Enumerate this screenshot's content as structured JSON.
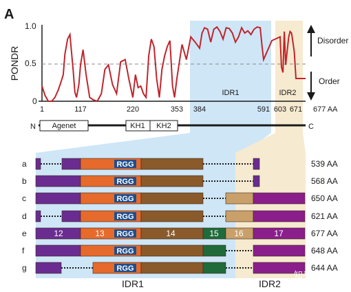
{
  "panel_label": "A",
  "y_axis": {
    "label": "PONDR",
    "ticks": [
      "1.0",
      "0.5",
      "0"
    ]
  },
  "arrows": {
    "disorder_label": "Disorder",
    "order_label": "Order"
  },
  "regions": {
    "idr1_label": "IDR1",
    "idr2_label": "IDR2"
  },
  "x_ticks": [
    "1",
    "117",
    "220",
    "353",
    "384",
    "591",
    "603",
    "671",
    "677 AA"
  ],
  "domain_map": {
    "n_label": "N",
    "c_label": "C",
    "agenet_label": "Agenet",
    "kh1_label": "KH1",
    "kh2_label": "KH2"
  },
  "isoform_rows": [
    {
      "letter": "a",
      "size": "539 AA"
    },
    {
      "letter": "b",
      "size": "568 AA"
    },
    {
      "letter": "c",
      "size": "650 AA"
    },
    {
      "letter": "d",
      "size": "621 AA"
    },
    {
      "letter": "e",
      "size": "677 AA"
    },
    {
      "letter": "f",
      "size": "648 AA"
    },
    {
      "letter": "g",
      "size": "644 AA"
    }
  ],
  "rgg_label": "RGG",
  "exon_labels": [
    "12",
    "13",
    "14",
    "15",
    "16",
    "17"
  ],
  "bottom_labels": {
    "idr1": "IDR1",
    "idr2": "IDR2"
  },
  "watermark": "知乎 @Ivy",
  "colors": {
    "idr1_band": "#cfe6f7",
    "idr2_band": "#f6ead0",
    "disorder_line": "#c0242b",
    "purple": "#6a2c91",
    "orange": "#e66a2c",
    "brown": "#8a5a2b",
    "green": "#1f6b3a",
    "tan": "#c9a06a",
    "magenta": "#8a1f8c",
    "rgg_box": "#1f4e8c"
  },
  "chart_data": {
    "type": "line",
    "ylabel": "PONDR",
    "ylim": [
      0,
      1
    ],
    "xlim": [
      1,
      677
    ],
    "threshold": 0.5,
    "series": [
      {
        "x": [
          1,
          10,
          20,
          30,
          40,
          50,
          58,
          65,
          70,
          78,
          85,
          95,
          100,
          105,
          112,
          117,
          122,
          128,
          135,
          142,
          150,
          158,
          165,
          172,
          180,
          188,
          196,
          205,
          212,
          220,
          228,
          236,
          244,
          252,
          260,
          268,
          276,
          284,
          292,
          300,
          308,
          316,
          324,
          332,
          340,
          346,
          353,
          360,
          366,
          372,
          378,
          384,
          392,
          400,
          410,
          420,
          430,
          440,
          450,
          460,
          470,
          480,
          490,
          500,
          510,
          520,
          530,
          540,
          550,
          560,
          570,
          580,
          586,
          591,
          597,
          603,
          609,
          615,
          621,
          627,
          633,
          640,
          646,
          652,
          658,
          664,
          671,
          677
        ],
        "y": [
          0.2,
          0.08,
          0.0,
          0.0,
          0.05,
          0.15,
          0.25,
          0.35,
          0.62,
          0.82,
          0.88,
          0.4,
          0.12,
          0.05,
          0.22,
          0.48,
          0.68,
          0.35,
          0.05,
          0.02,
          0.0,
          0.1,
          0.42,
          0.48,
          0.22,
          0.1,
          0.52,
          0.55,
          0.3,
          0.05,
          0.35,
          0.18,
          0.2,
          0.1,
          0.05,
          0.6,
          0.82,
          0.72,
          0.3,
          0.05,
          0.42,
          0.6,
          0.72,
          0.8,
          0.2,
          0.05,
          0.3,
          0.75,
          0.55,
          0.85,
          0.78,
          0.7,
          0.9,
          0.97,
          0.95,
          0.78,
          0.95,
          0.98,
          0.92,
          0.82,
          0.97,
          0.96,
          0.9,
          0.78,
          0.85,
          0.97,
          0.9,
          0.93,
          0.88,
          0.95,
          0.98,
          0.97,
          0.72,
          0.55,
          0.8,
          0.85,
          0.45,
          0.38,
          0.92,
          0.48,
          0.65,
          0.85,
          0.92,
          0.9,
          0.78,
          0.65,
          0.3,
          0.3
        ]
      }
    ]
  }
}
